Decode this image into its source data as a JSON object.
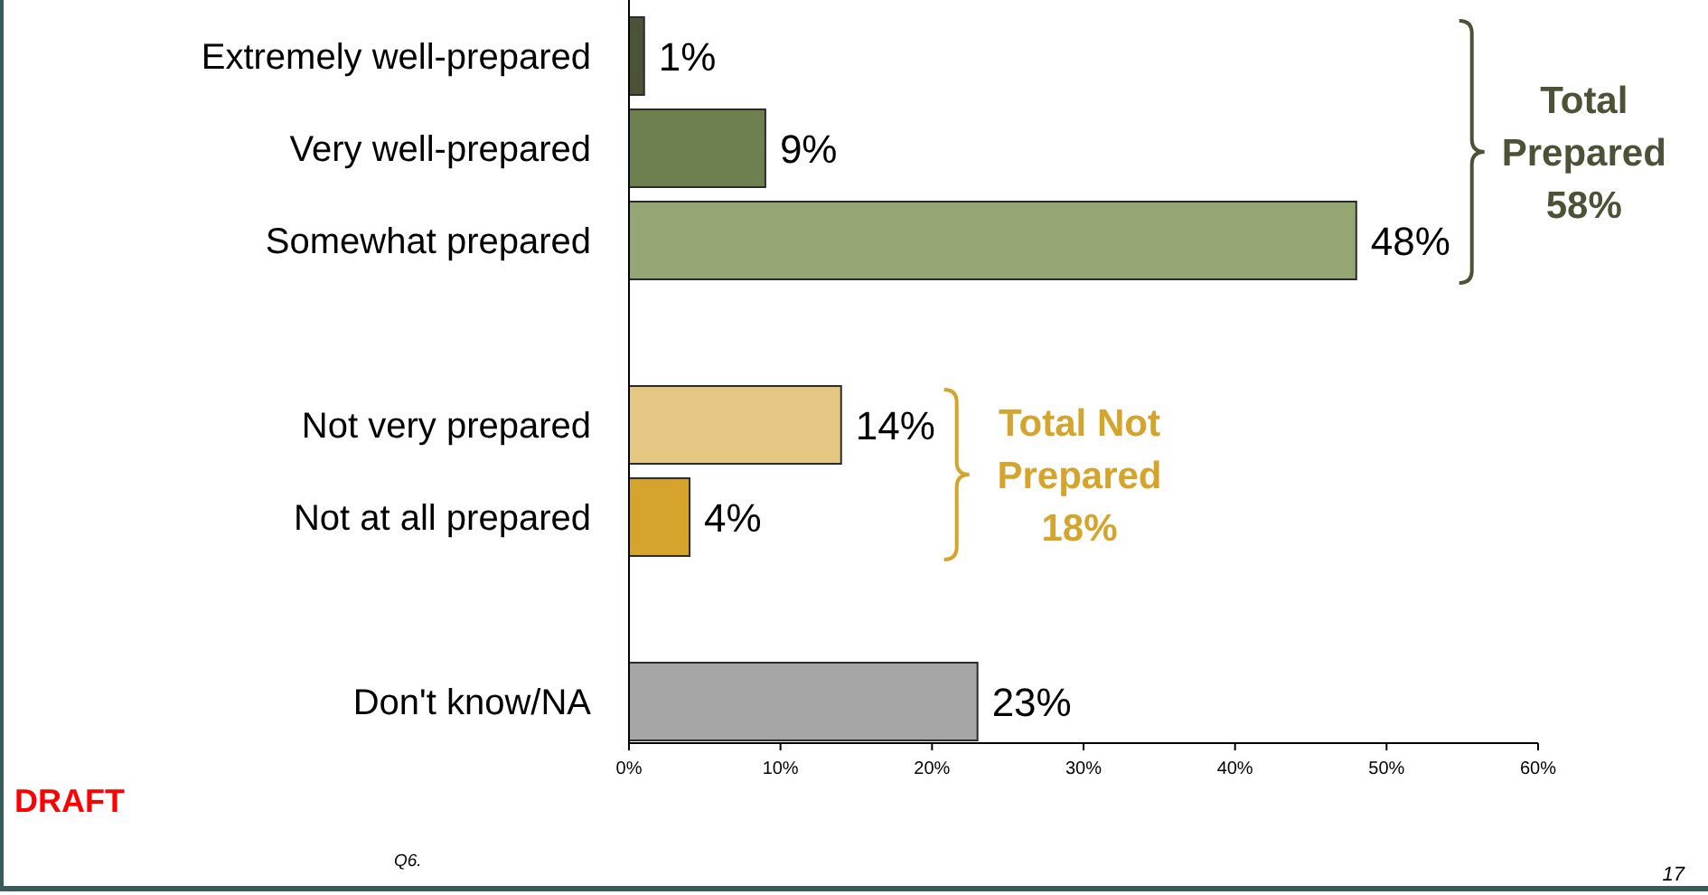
{
  "chart_data": {
    "type": "bar",
    "orientation": "horizontal",
    "categories": [
      "Extremely well-prepared",
      "Very well-prepared",
      "Somewhat prepared",
      null,
      "Not very prepared",
      "Not at all prepared",
      null,
      "Don't know/NA"
    ],
    "values": [
      1,
      9,
      48,
      null,
      14,
      4,
      null,
      23
    ],
    "colors": [
      "#4b5236",
      "#6e7f50",
      "#95a674",
      null,
      "#e4c783",
      "#d4a42c",
      null,
      "#a6a6a6"
    ],
    "value_labels": [
      "1%",
      "9%",
      "48%",
      null,
      "14%",
      "4%",
      null,
      "23%"
    ],
    "xlim": [
      0,
      60
    ],
    "xticks": [
      {
        "value": 0,
        "label": "0%"
      },
      {
        "value": 10,
        "label": "10%"
      },
      {
        "value": 20,
        "label": "20%"
      },
      {
        "value": 30,
        "label": "30%"
      },
      {
        "value": 40,
        "label": "40%"
      },
      {
        "value": 50,
        "label": "50%"
      },
      {
        "value": 60,
        "label": "60%"
      }
    ],
    "annotations": [
      "Total\nPrepared\n58%",
      "Total Not\nPrepared\n18%",
      "DRAFT",
      "Q6.",
      "17"
    ]
  }
}
